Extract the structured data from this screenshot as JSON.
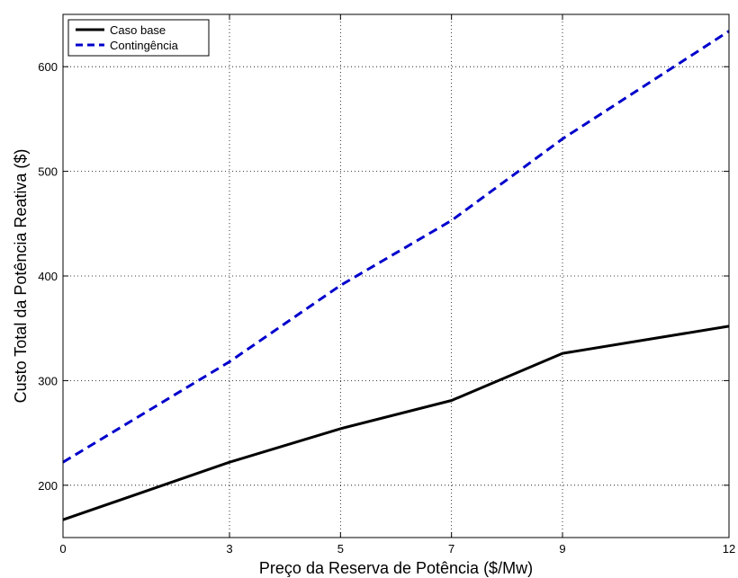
{
  "chart_data": {
    "type": "line",
    "title": "",
    "xlabel": "Preço da Reserva de Potência ($/Mw)",
    "ylabel": "Custo Total da Potência Reativa ($)",
    "x": [
      0,
      3,
      5,
      7,
      9,
      12
    ],
    "xlim": [
      0,
      12
    ],
    "ylim": [
      150,
      650
    ],
    "xticks": [
      0,
      3,
      5,
      7,
      9,
      12
    ],
    "yticks": [
      200,
      300,
      400,
      500,
      600
    ],
    "grid": true,
    "grid_style": "dotted",
    "legend_position": "top-left",
    "series": [
      {
        "name": "Caso base",
        "values": [
          167,
          222,
          254,
          281,
          326,
          352
        ],
        "color": "#000000",
        "dash": "solid"
      },
      {
        "name": "Contingência",
        "values": [
          222,
          318,
          391,
          453,
          531,
          634
        ],
        "color": "#0000cc",
        "dash": "dashed"
      }
    ]
  }
}
